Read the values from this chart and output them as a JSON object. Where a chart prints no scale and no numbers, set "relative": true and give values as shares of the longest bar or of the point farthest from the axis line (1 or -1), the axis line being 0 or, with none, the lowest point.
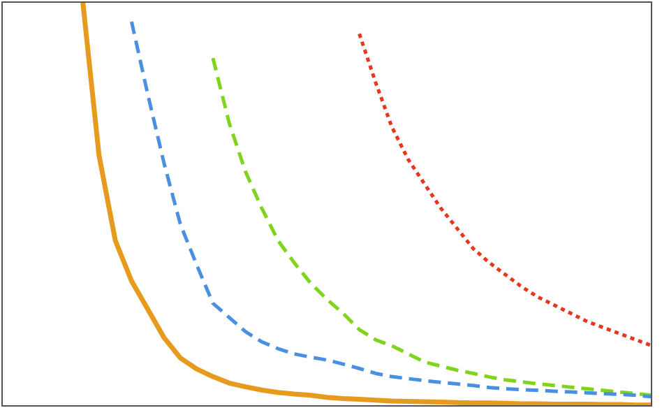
{
  "chart_data": {
    "type": "line",
    "relative": true,
    "marker": "none",
    "categories": [
      null,
      null,
      null,
      null,
      null,
      null,
      null,
      null,
      null,
      null,
      null,
      null,
      null,
      null,
      null,
      null,
      null,
      null,
      null,
      null,
      null,
      null,
      null,
      null,
      null,
      null,
      null,
      null,
      null,
      null,
      null,
      null,
      null,
      null,
      null,
      null,
      null,
      null,
      null,
      null,
      null
    ],
    "series": [
      {
        "color": "#e69a1e",
        "line_style": "solid",
        "values": [
          null,
          null,
          null,
          null,
          null,
          1,
          0.62,
          0.41,
          0.31,
          0.24,
          0.17,
          0.12,
          0.093,
          0.074,
          0.058,
          0.049,
          0.041,
          0.035,
          0.031,
          0.028,
          0.023,
          0.02,
          0.018,
          0.016,
          0.014,
          0.013,
          0.012,
          0.011,
          0.01,
          0.009,
          0.009,
          0.008,
          0.007,
          0.007,
          0.006,
          0.006,
          0.006,
          0.005,
          0.005,
          0.004,
          0.004
        ]
      },
      {
        "color": "#4a90e2",
        "line_style": "dashed",
        "values": [
          null,
          null,
          null,
          null,
          null,
          null,
          null,
          null,
          0.95,
          0.77,
          0.6,
          0.45,
          0.35,
          0.255,
          0.22,
          0.185,
          0.16,
          0.143,
          0.13,
          0.122,
          0.115,
          0.105,
          0.094,
          0.082,
          0.074,
          0.069,
          0.064,
          0.06,
          0.056,
          0.052,
          0.047,
          0.044,
          0.042,
          0.04,
          0.038,
          0.036,
          0.034,
          0.032,
          0.03,
          0.028,
          0.024
        ]
      },
      {
        "color": "#80d41e",
        "line_style": "dashed",
        "values": [
          null,
          null,
          null,
          null,
          null,
          null,
          null,
          null,
          null,
          null,
          null,
          null,
          null,
          0.86,
          0.7,
          0.58,
          0.49,
          0.41,
          0.355,
          0.305,
          0.265,
          0.23,
          0.19,
          0.165,
          0.15,
          0.13,
          0.11,
          0.1,
          0.09,
          0.082,
          0.073,
          0.066,
          0.061,
          0.056,
          0.052,
          0.048,
          0.044,
          0.04,
          0.036,
          0.032,
          0.028
        ]
      },
      {
        "color": "#e8361e",
        "line_style": "dotted",
        "values": [
          null,
          null,
          null,
          null,
          null,
          null,
          null,
          null,
          null,
          null,
          null,
          null,
          null,
          null,
          null,
          null,
          null,
          null,
          null,
          null,
          null,
          null,
          0.92,
          0.8,
          0.69,
          0.61,
          0.55,
          0.49,
          0.44,
          0.39,
          0.355,
          0.325,
          0.295,
          0.27,
          0.25,
          0.23,
          0.21,
          0.195,
          0.18,
          0.165,
          0.15
        ]
      }
    ]
  }
}
